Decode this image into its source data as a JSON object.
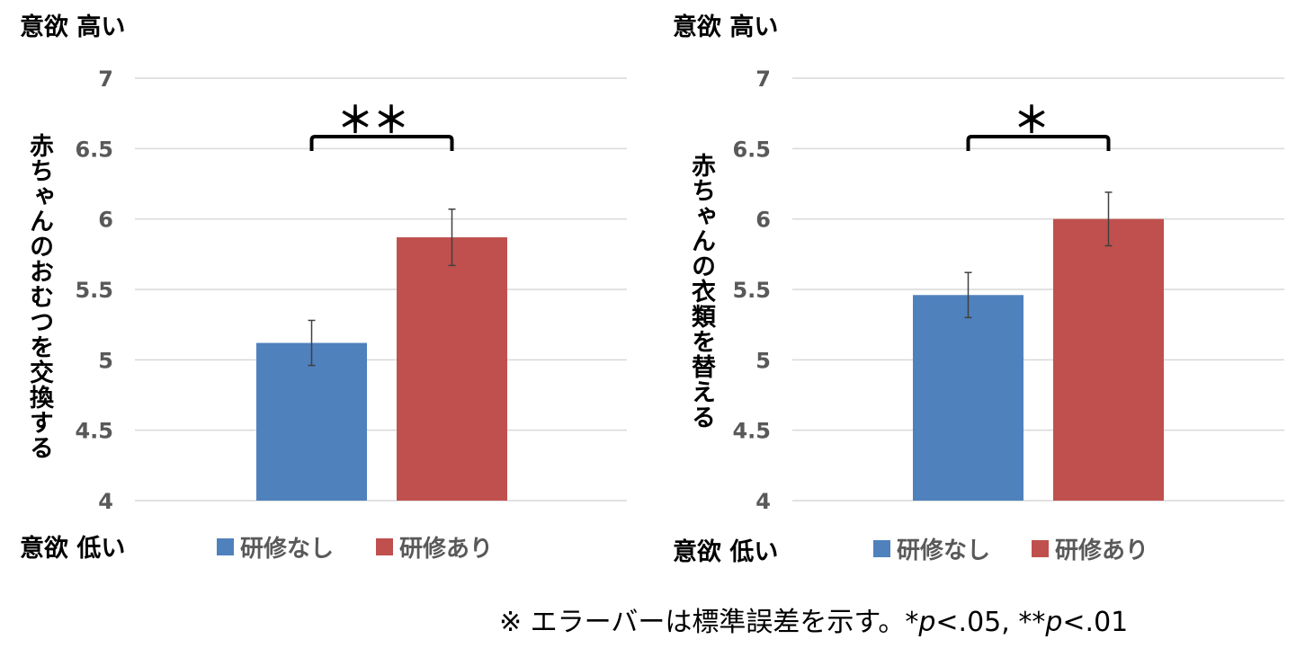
{
  "colors": {
    "no_training": "#4F81BD",
    "with_training": "#C0504D",
    "grid": "#D9D9D9",
    "tick": "#595959"
  },
  "chart_data": [
    {
      "type": "bar",
      "ylabel": "赤ちゃんのおむつを交換する",
      "top_label": "意欲 高い",
      "bottom_label": "意欲 低い",
      "ylim": [
        4,
        7
      ],
      "yticks": [
        "4",
        "4.5",
        "5",
        "5.5",
        "6",
        "6.5",
        "7"
      ],
      "grid": true,
      "legend_position": "bottom",
      "series": [
        {
          "name": "研修なし",
          "value": 5.12,
          "error": 0.16
        },
        {
          "name": "研修あり",
          "value": 5.87,
          "error": 0.2
        }
      ],
      "significance": "＊＊"
    },
    {
      "type": "bar",
      "ylabel": "赤ちゃんの衣類を替える",
      "top_label": "意欲 高い",
      "bottom_label": "意欲 低い",
      "ylim": [
        4,
        7
      ],
      "yticks": [
        "4",
        "4.5",
        "5",
        "5.5",
        "6",
        "6.5",
        "7"
      ],
      "grid": true,
      "legend_position": "bottom",
      "series": [
        {
          "name": "研修なし",
          "value": 5.46,
          "error": 0.16
        },
        {
          "name": "研修あり",
          "value": 6.0,
          "error": 0.19
        }
      ],
      "significance": "＊"
    }
  ],
  "note": {
    "text": "※ エラーバーは標準誤差を示す。*",
    "p1": "p",
    "t1": "<.05, **",
    "p2": "p",
    "t2": "<.01"
  }
}
